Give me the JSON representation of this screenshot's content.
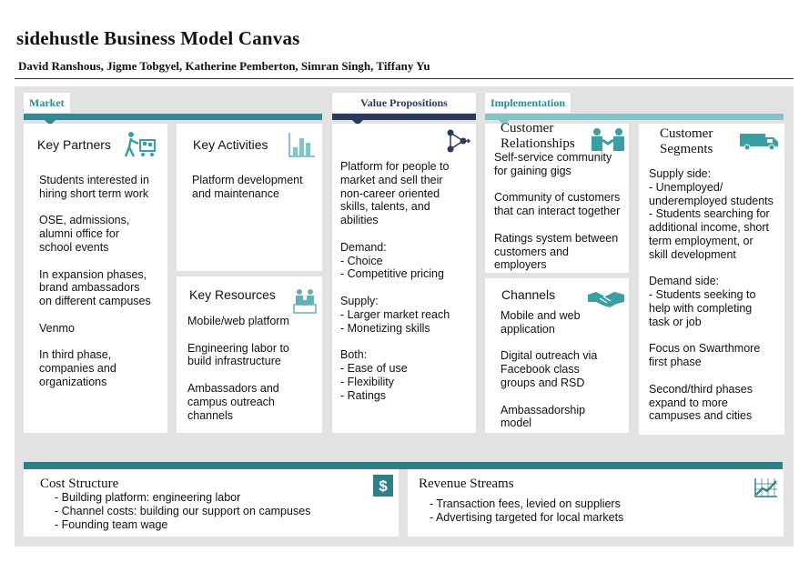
{
  "title": "sidehustle Business Model Canvas",
  "authors": "David Ranshous, Jigme Tobgyel, Katherine Pemberton, Simran Singh, Tiffany Yu",
  "tabs": {
    "market": "Market",
    "value": "Value Propositions",
    "implementation": "Implementation"
  },
  "colors": {
    "teal": "#2e8a93",
    "navy": "#2b3a5e",
    "light_teal": "#7ec7c9",
    "canvas": "#e2e2e2"
  },
  "key_partners": {
    "title": "Key Partners",
    "icon": "cart-person-icon",
    "text": "Students interested in\nhiring short term work\n\nOSE, admissions,\nalumni office for\nschool events\n\nIn expansion phases,\nbrand ambassadors\non different campuses\n\nVenmo\n\nIn third phase,\ncompanies and\norganizations"
  },
  "key_activities": {
    "title": "Key Activities",
    "icon": "bar-chart-icon",
    "text": "Platform development\nand maintenance"
  },
  "key_resources": {
    "title": "Key Resources",
    "icon": "people-resources-icon",
    "text": "Mobile/web platform\n\nEngineering labor to\nbuild infrastructure\n\nAmbassadors and\ncampus outreach\nchannels"
  },
  "value_propositions": {
    "icon": "network-icon",
    "text": "Platform for people to\nmarket and sell their\nnon-career oriented\nskills, talents, and\nabilities\n\nDemand:\n- Choice\n- Competitive pricing\n\nSupply:\n- Larger market reach\n- Monetizing skills\n\nBoth:\n- Ease of use\n- Flexibility\n- Ratings"
  },
  "customer_relationships": {
    "title": "Customer\nRelationships",
    "icon": "people-meeting-icon",
    "text": "Self-service community\nfor gaining gigs\n\nCommunity of customers\nthat can interact together\n\nRatings system between\ncustomers and\nemployers"
  },
  "channels": {
    "title": "Channels",
    "icon": "handshake-icon",
    "text": "Mobile and web\napplication\n\nDigital outreach via\nFacebook class\ngroups and RSD\n\nAmbassadorship\nmodel"
  },
  "customer_segments": {
    "title": "Customer\nSegments",
    "icon": "truck-icon",
    "text": "Supply side:\n- Unemployed/\nunderemployed students\n- Students searching for\nadditional income, short\nterm employment, or\nskill development\n\nDemand side:\n- Students seeking to\nhelp with completing\ntask or job\n\nFocus on Swarthmore\nfirst phase\n\nSecond/third phases\nexpand to more\ncampuses and cities"
  },
  "cost_structure": {
    "title": "Cost Structure",
    "icon": "dollar-icon",
    "text": "- Building platform: engineering labor\n- Channel costs: building our support on campuses\n- Founding team wage"
  },
  "revenue_streams": {
    "title": "Revenue Streams",
    "icon": "graph-icon",
    "text": "- Transaction fees, levied on suppliers\n- Advertising targeted for local markets"
  }
}
